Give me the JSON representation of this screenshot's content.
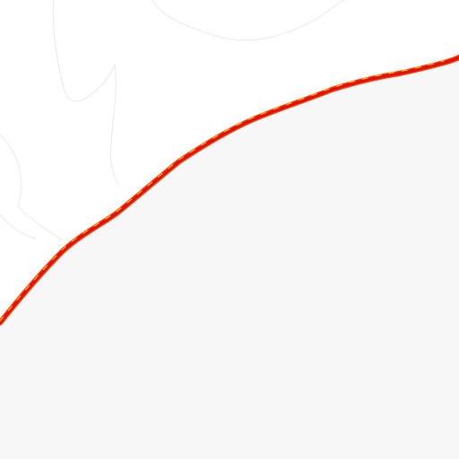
{
  "scene": {
    "description_visible_text": "",
    "colors": {
      "background_top": "#ffffff",
      "background_lower": "#f7f7f8",
      "faint_contours": "#ececee",
      "edge_outer": "#ff3300",
      "edge_core": "#e01000",
      "edge_highlight": "#ffe000"
    }
  }
}
